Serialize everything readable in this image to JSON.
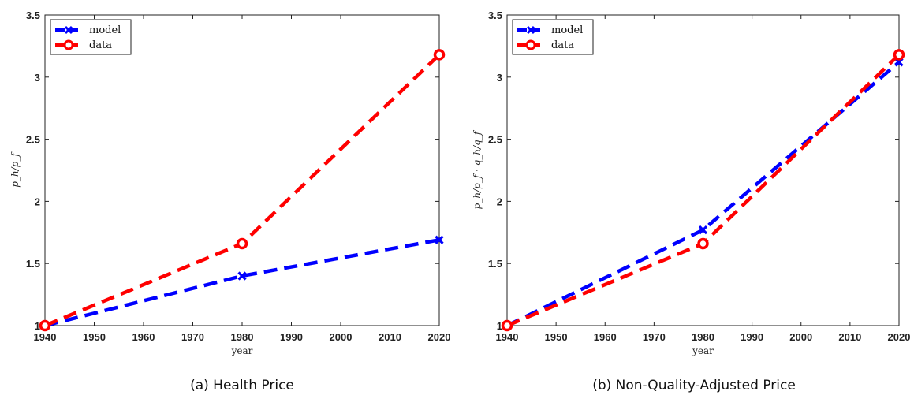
{
  "chart_data": [
    {
      "type": "line",
      "caption": "(a) Health Price",
      "xlabel": "year",
      "ylabel": "p_h/p_f",
      "xlim": [
        1940,
        2020
      ],
      "ylim": [
        1,
        3.5
      ],
      "xticks": [
        "1940",
        "1950",
        "1960",
        "1970",
        "1980",
        "1990",
        "2000",
        "2010",
        "2020"
      ],
      "yticks": [
        "1",
        "1.5",
        "2",
        "2.5",
        "3",
        "3.5"
      ],
      "legend": "top-left",
      "grid": false,
      "series": [
        {
          "name": "model",
          "color": "#0000ff",
          "marker": "x",
          "x": [
            1940,
            1980,
            2020
          ],
          "y": [
            1.0,
            1.4,
            1.69
          ]
        },
        {
          "name": "data",
          "color": "#ff0000",
          "marker": "o",
          "x": [
            1940,
            1980,
            2020
          ],
          "y": [
            1.0,
            1.66,
            3.18
          ]
        }
      ]
    },
    {
      "type": "line",
      "caption": "(b) Non-Quality-Adjusted Price",
      "xlabel": "year",
      "ylabel": "p_h/p_f · q_h/q_f",
      "xlim": [
        1940,
        2020
      ],
      "ylim": [
        1,
        3.5
      ],
      "xticks": [
        "1940",
        "1950",
        "1960",
        "1970",
        "1980",
        "1990",
        "2000",
        "2010",
        "2020"
      ],
      "yticks": [
        "1",
        "1.5",
        "2",
        "2.5",
        "3",
        "3.5"
      ],
      "legend": "top-left",
      "grid": false,
      "series": [
        {
          "name": "model",
          "color": "#0000ff",
          "marker": "x",
          "x": [
            1940,
            1980,
            2020
          ],
          "y": [
            1.0,
            1.77,
            3.12
          ]
        },
        {
          "name": "data",
          "color": "#ff0000",
          "marker": "o",
          "x": [
            1940,
            1980,
            2020
          ],
          "y": [
            1.0,
            1.66,
            3.18
          ]
        }
      ]
    }
  ]
}
